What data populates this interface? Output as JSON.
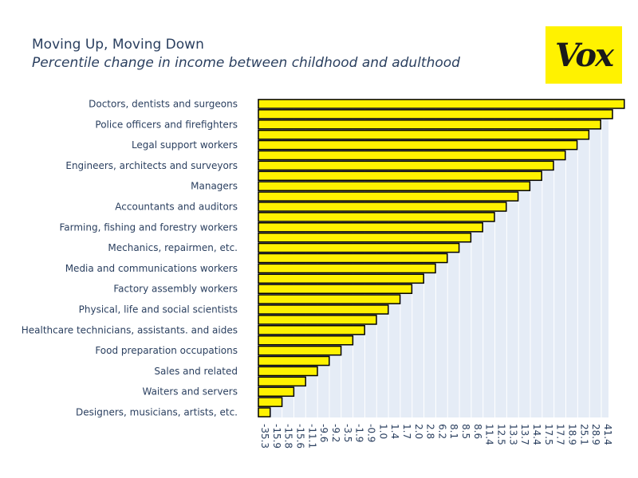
{
  "chart_data": {
    "type": "bar",
    "orientation": "horizontal",
    "title": "Moving Up, Moving Down",
    "subtitle": "Percentile change in income between childhood and adulthood",
    "categories": [
      "Doctors, dentists and surgeons",
      "",
      "Police officers and firefighters",
      "",
      "Legal support workers",
      "",
      "Engineers, architects and surveyors",
      "",
      "Managers",
      "",
      "Accountants and auditors",
      "",
      "Farming, fishing and forestry workers",
      "",
      "Mechanics, repairmen, etc.",
      "",
      "Media and communications workers",
      "",
      "Factory assembly workers",
      "",
      "Physical, life and social scientists",
      "",
      "Healthcare technicians, assistants. and aides",
      "",
      "Food preparation occupations",
      "",
      "Sales and related",
      "",
      "Waiters and servers",
      "",
      "Designers, musicians, artists, etc."
    ],
    "x_tick_labels": [
      "-35.3",
      "-15.9",
      "-15.8",
      "-15.6",
      "-11.1",
      "-9.6",
      "-9.2",
      "-3.5",
      "-1.9",
      "-0.9",
      "1.0",
      "1.4",
      "1.7",
      "2.0",
      "2.8",
      "6.2",
      "8.1",
      "8.5",
      "8.6",
      "11.4",
      "12.5",
      "13.3",
      "13.7",
      "14.4",
      "17.5",
      "17.7",
      "18.9",
      "25.1",
      "28.9",
      "41.4"
    ],
    "values": [
      41.4,
      28.9,
      25.1,
      18.9,
      17.7,
      17.5,
      14.4,
      13.7,
      13.3,
      12.5,
      11.4,
      8.6,
      8.5,
      8.5,
      8.1,
      6.2,
      2.8,
      2.0,
      1.7,
      1.4,
      1.0,
      -0.9,
      -1.9,
      -3.5,
      -9.2,
      -9.6,
      -11.1,
      -15.6,
      -15.8,
      -15.9,
      -35.3
    ],
    "bar_color": "#fff200",
    "bar_outline": "#000000",
    "plot_background": "#e5ecf6",
    "grid": true
  },
  "logo": {
    "text": "Vox",
    "background": "#fff200"
  }
}
